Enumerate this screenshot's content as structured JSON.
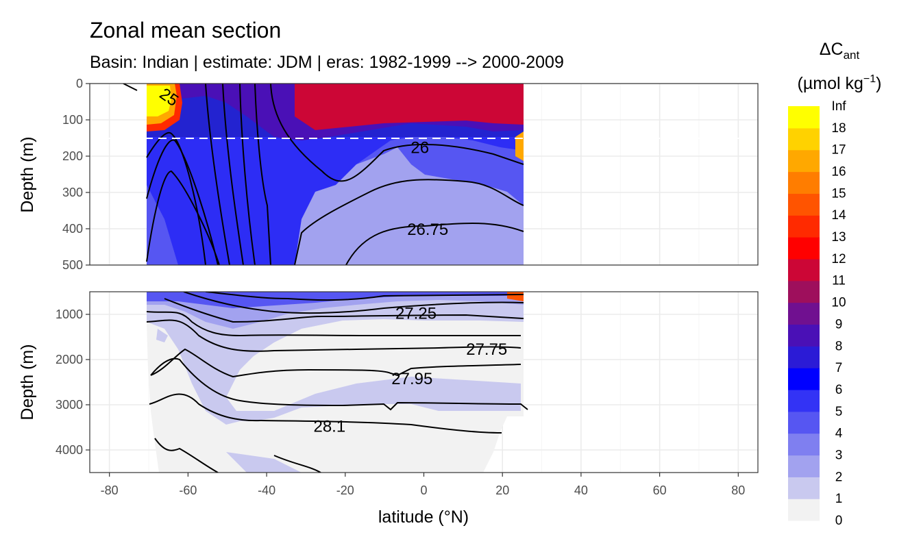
{
  "chart_data": {
    "type": "heatmap",
    "title": "Zonal mean section",
    "subtitle": "Basin: Indian | estimate: JDM  | eras: 1982-1999 --> 2000-2009",
    "xlabel": "latitude (°N)",
    "ylabel": "Depth (m)",
    "xlim": [
      -85,
      85
    ],
    "x_ticks": [
      -80,
      -60,
      -40,
      -20,
      0,
      20,
      40,
      60,
      80
    ],
    "data_lat_range": [
      -70,
      25
    ],
    "panels": [
      {
        "name": "upper",
        "ylim": [
          0,
          500
        ],
        "y_ticks": [
          0,
          100,
          200,
          300,
          400,
          500
        ]
      },
      {
        "name": "lower",
        "ylim": [
          500,
          4500
        ],
        "y_ticks": [
          1000,
          2000,
          3000,
          4000
        ]
      }
    ],
    "reference_line_depth": 150,
    "legend": {
      "title_main": "ΔC",
      "title_sub": "ant",
      "units": "(µmol kg",
      "units_sup": "−1",
      "units_close": ")",
      "levels": [
        "0",
        "1",
        "2",
        "3",
        "4",
        "5",
        "6",
        "7",
        "8",
        "9",
        "10",
        "11",
        "12",
        "13",
        "14",
        "15",
        "16",
        "17",
        "18",
        "Inf"
      ],
      "colors": [
        "#f2f2f2",
        "#c9c9ef",
        "#a2a2ef",
        "#7f7ff0",
        "#5656f2",
        "#3333f5",
        "#0000ff",
        "#2b1bd6",
        "#4a10b6",
        "#701090",
        "#9e0f5c",
        "#cc0636",
        "#ff0000",
        "#ff2a00",
        "#ff5400",
        "#ff7d00",
        "#ffa800",
        "#ffd200",
        "#ffff00"
      ]
    },
    "contours": [
      {
        "label": "25.25",
        "display": "25",
        "value": 25.25,
        "panel": "upper",
        "at": [
          -65,
          40
        ]
      },
      {
        "label": "26",
        "value": 26,
        "panel": "upper",
        "at": [
          -1,
          180
        ]
      },
      {
        "label": "26.75",
        "value": 26.75,
        "panel": "upper",
        "at": [
          1,
          405
        ]
      },
      {
        "label": "27.25",
        "value": 27.25,
        "panel": "lower",
        "at": [
          -2,
          1000
        ]
      },
      {
        "label": "27.75",
        "value": 27.75,
        "panel": "lower",
        "at": [
          16,
          1800
        ]
      },
      {
        "label": "27.95",
        "value": 27.95,
        "panel": "lower",
        "at": [
          -3,
          2450
        ]
      },
      {
        "label": "28.1",
        "value": 28.1,
        "panel": "lower",
        "at": [
          -24,
          3500
        ]
      }
    ]
  }
}
